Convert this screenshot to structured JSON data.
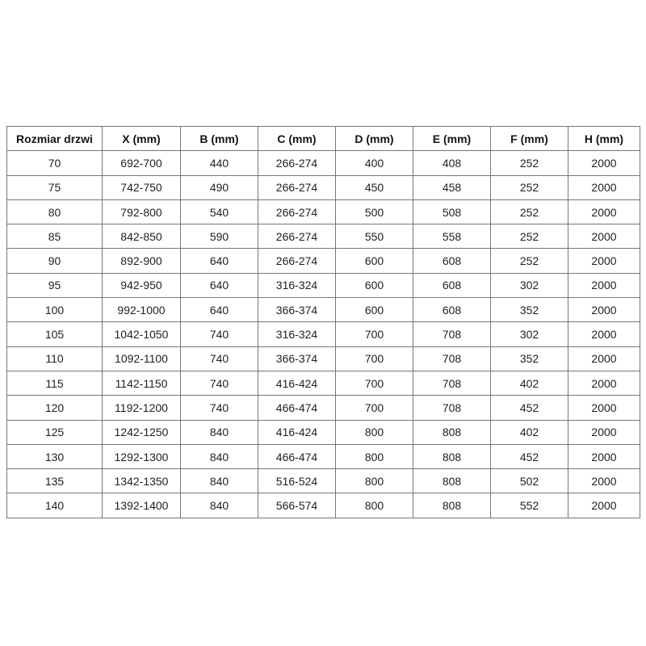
{
  "page": {
    "background_color": "#ffffff",
    "table_border_color": "#767676",
    "table_text_color": "#1f1f1f"
  },
  "table": {
    "columns": [
      "Rozmiar drzwi",
      "X (mm)",
      "B (mm)",
      "C (mm)",
      "D (mm)",
      "E (mm)",
      "F (mm)",
      "H (mm)"
    ],
    "rows": [
      [
        "70",
        "692-700",
        "440",
        "266-274",
        "400",
        "408",
        "252",
        "2000"
      ],
      [
        "75",
        "742-750",
        "490",
        "266-274",
        "450",
        "458",
        "252",
        "2000"
      ],
      [
        "80",
        "792-800",
        "540",
        "266-274",
        "500",
        "508",
        "252",
        "2000"
      ],
      [
        "85",
        "842-850",
        "590",
        "266-274",
        "550",
        "558",
        "252",
        "2000"
      ],
      [
        "90",
        "892-900",
        "640",
        "266-274",
        "600",
        "608",
        "252",
        "2000"
      ],
      [
        "95",
        "942-950",
        "640",
        "316-324",
        "600",
        "608",
        "302",
        "2000"
      ],
      [
        "100",
        "992-1000",
        "640",
        "366-374",
        "600",
        "608",
        "352",
        "2000"
      ],
      [
        "105",
        "1042-1050",
        "740",
        "316-324",
        "700",
        "708",
        "302",
        "2000"
      ],
      [
        "110",
        "1092-1100",
        "740",
        "366-374",
        "700",
        "708",
        "352",
        "2000"
      ],
      [
        "115",
        "1142-1150",
        "740",
        "416-424",
        "700",
        "708",
        "402",
        "2000"
      ],
      [
        "120",
        "1192-1200",
        "740",
        "466-474",
        "700",
        "708",
        "452",
        "2000"
      ],
      [
        "125",
        "1242-1250",
        "840",
        "416-424",
        "800",
        "808",
        "402",
        "2000"
      ],
      [
        "130",
        "1292-1300",
        "840",
        "466-474",
        "800",
        "808",
        "452",
        "2000"
      ],
      [
        "135",
        "1342-1350",
        "840",
        "516-524",
        "800",
        "808",
        "502",
        "2000"
      ],
      [
        "140",
        "1392-1400",
        "840",
        "566-574",
        "800",
        "808",
        "552",
        "2000"
      ]
    ]
  }
}
